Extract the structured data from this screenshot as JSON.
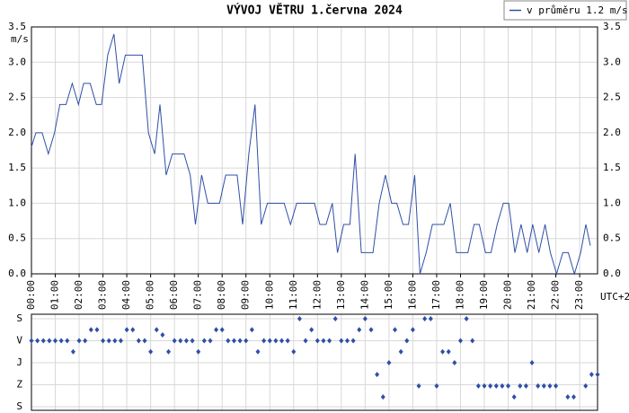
{
  "chart_data": [
    {
      "type": "line",
      "title": "VÝVOJ VĚTRU  1.června 2024",
      "ylabel": "m/s",
      "xlabel": "UTC+2",
      "legend": "top-right",
      "grid": true,
      "xlim": [
        0,
        23.75
      ],
      "xticks": [
        {
          "value": 0,
          "label": "00:00"
        },
        {
          "value": 1,
          "label": "01:00"
        },
        {
          "value": 2,
          "label": "02:00"
        },
        {
          "value": 3,
          "label": "03:00"
        },
        {
          "value": 4,
          "label": "04:00"
        },
        {
          "value": 5,
          "label": "05:00"
        },
        {
          "value": 6,
          "label": "06:00"
        },
        {
          "value": 7,
          "label": "07:00"
        },
        {
          "value": 8,
          "label": "08:00"
        },
        {
          "value": 9,
          "label": "09:00"
        },
        {
          "value": 10,
          "label": "10:00"
        },
        {
          "value": 11,
          "label": "11:00"
        },
        {
          "value": 12,
          "label": "12:00"
        },
        {
          "value": 13,
          "label": "13:00"
        },
        {
          "value": 14,
          "label": "14:00"
        },
        {
          "value": 15,
          "label": "15:00"
        },
        {
          "value": 16,
          "label": "16:00"
        },
        {
          "value": 17,
          "label": "17:00"
        },
        {
          "value": 18,
          "label": "18:00"
        },
        {
          "value": 19,
          "label": "19:00"
        },
        {
          "value": 20,
          "label": "20:00"
        },
        {
          "value": 21,
          "label": "21:00"
        },
        {
          "value": 22,
          "label": "22:00"
        },
        {
          "value": 23,
          "label": "23:00"
        }
      ],
      "ylim": [
        0,
        3.5
      ],
      "yticks": [
        {
          "value": 0,
          "label": "0.0"
        },
        0.5,
        {
          "value": 1,
          "label": "1.0"
        },
        1.5,
        {
          "value": 2,
          "label": "2.0"
        },
        2.5,
        {
          "value": 3,
          "label": "3.0"
        },
        3.5
      ],
      "x": [
        0,
        0.19,
        0.45,
        0.71,
        0.97,
        1.19,
        1.45,
        1.71,
        1.97,
        2.19,
        2.46,
        2.72,
        2.94,
        3.2,
        3.46,
        3.68,
        3.94,
        4.65,
        4.91,
        5.17,
        5.39,
        5.65,
        5.91,
        6.4,
        6.66,
        6.88,
        7.14,
        7.4,
        7.89,
        8.15,
        8.63,
        8.86,
        9.12,
        9.38,
        9.64,
        9.9,
        10.6,
        10.87,
        11.13,
        11.87,
        12.1,
        12.36,
        12.62,
        12.84,
        13.1,
        13.36,
        13.58,
        13.84,
        14.33,
        14.59,
        14.85,
        15.11,
        15.33,
        15.59,
        15.82,
        16.08,
        16.3,
        16.56,
        16.82,
        17.3,
        17.57,
        17.83,
        18.31,
        18.57,
        18.79,
        19.05,
        19.28,
        19.54,
        19.8,
        20.02,
        20.28,
        20.54,
        20.8,
        21.03,
        21.29,
        21.55,
        21.77,
        22.03,
        22.29,
        22.52,
        22.78,
        23.04,
        23.26,
        23.45
      ],
      "series": [
        {
          "name": "v průměru 1.2 m/s",
          "color": "#2f4fa8",
          "values": [
            1.8,
            2.0,
            2.0,
            1.7,
            2.0,
            2.4,
            2.4,
            2.7,
            2.4,
            2.7,
            2.7,
            2.4,
            2.4,
            3.1,
            3.4,
            2.7,
            3.1,
            3.1,
            2.0,
            1.7,
            2.4,
            1.4,
            1.7,
            1.7,
            1.4,
            0.7,
            1.4,
            1.0,
            1.0,
            1.4,
            1.4,
            0.7,
            1.7,
            2.4,
            0.7,
            1.0,
            1.0,
            0.7,
            1.0,
            1.0,
            0.7,
            0.7,
            1.0,
            0.3,
            0.7,
            0.7,
            1.7,
            0.3,
            0.3,
            1.0,
            1.4,
            1.0,
            1.0,
            0.7,
            0.7,
            1.4,
            0.0,
            0.3,
            0.7,
            0.7,
            1.0,
            0.3,
            0.3,
            0.7,
            0.7,
            0.3,
            0.3,
            0.7,
            1.0,
            1.0,
            0.3,
            0.7,
            0.3,
            0.7,
            0.3,
            0.7,
            0.3,
            0.0,
            0.3,
            0.3,
            0.0,
            0.3,
            0.7,
            0.4
          ]
        }
      ]
    },
    {
      "type": "scatter",
      "color": "#2f4fa8",
      "grid": true,
      "xlim": [
        0,
        23.75
      ],
      "ylim": [
        0,
        360
      ],
      "yticks": [
        {
          "value": 0,
          "label": "S"
        },
        {
          "value": 90,
          "label": "V"
        },
        {
          "value": 180,
          "label": "J"
        },
        {
          "value": 270,
          "label": "Z"
        },
        {
          "value": 360,
          "label": "S"
        }
      ],
      "x": [
        0,
        0.25,
        0.5,
        0.75,
        1,
        1.25,
        1.5,
        1.75,
        2,
        2.25,
        2.5,
        2.75,
        3,
        3.25,
        3.5,
        3.75,
        4,
        4.25,
        4.5,
        4.75,
        5,
        5.25,
        5.5,
        5.75,
        6,
        6.25,
        6.5,
        6.75,
        7,
        7.25,
        7.5,
        7.75,
        8,
        8.25,
        8.5,
        8.75,
        9,
        9.25,
        9.5,
        9.75,
        10,
        10.25,
        10.5,
        10.75,
        11,
        11.25,
        11.5,
        11.75,
        12,
        12.25,
        12.5,
        12.75,
        13,
        13.25,
        13.5,
        13.75,
        14,
        14.25,
        14.5,
        14.75,
        15,
        15.25,
        15.5,
        15.75,
        16,
        16.25,
        16.5,
        16.75,
        17,
        17.25,
        17.5,
        17.75,
        18,
        18.25,
        18.5,
        18.75,
        19,
        19.25,
        19.5,
        19.75,
        20,
        20.25,
        20.5,
        20.75,
        21,
        21.25,
        21.5,
        21.75,
        22,
        22.5,
        22.75,
        23.25,
        23.5,
        23.75
      ],
      "values": [
        90,
        90,
        90,
        90,
        90,
        90,
        90,
        135,
        90,
        90,
        45,
        45,
        90,
        90,
        90,
        90,
        45,
        45,
        90,
        90,
        135,
        45,
        66,
        135,
        90,
        90,
        90,
        90,
        135,
        90,
        90,
        45,
        45,
        90,
        90,
        90,
        90,
        45,
        135,
        90,
        90,
        90,
        90,
        90,
        135,
        0,
        90,
        45,
        90,
        90,
        90,
        0,
        90,
        90,
        90,
        45,
        0,
        45,
        228,
        320,
        180,
        45,
        135,
        90,
        45,
        275,
        0,
        0,
        275,
        135,
        135,
        180,
        90,
        0,
        90,
        275,
        275,
        275,
        275,
        275,
        275,
        320,
        275,
        275,
        180,
        275,
        275,
        275,
        275,
        320,
        320,
        275,
        228,
        228
      ]
    }
  ]
}
